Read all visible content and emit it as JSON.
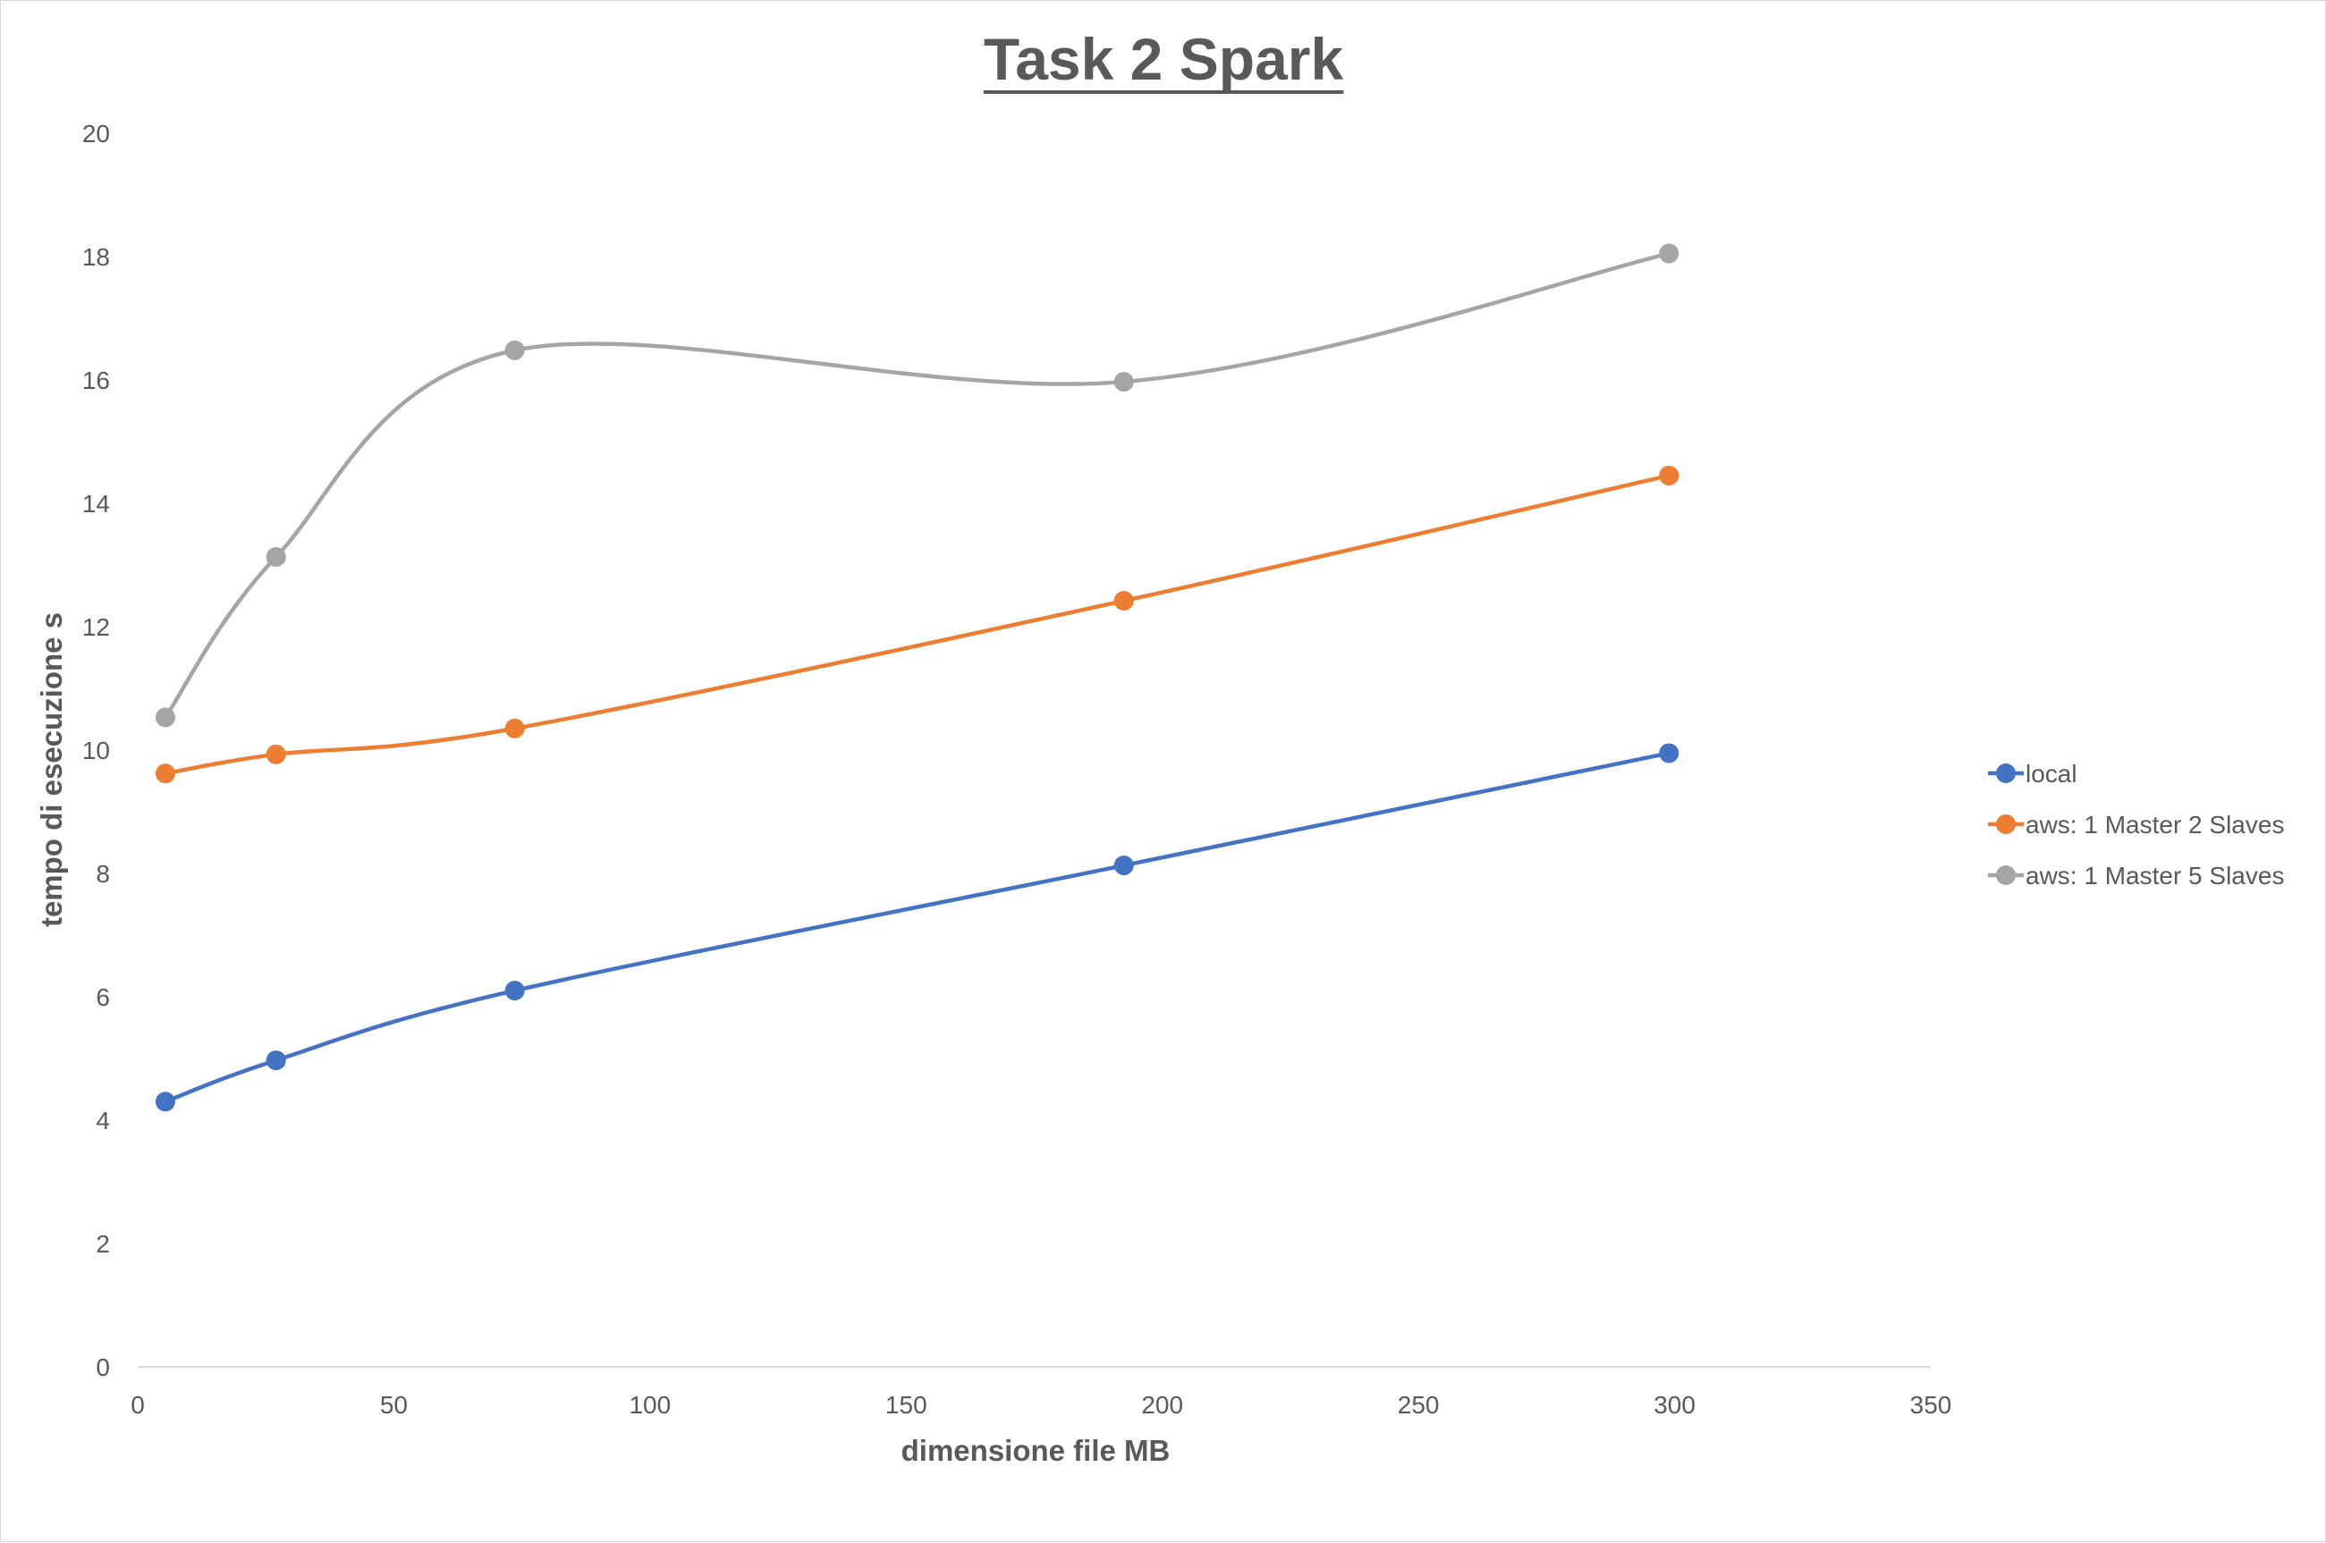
{
  "chart_data": {
    "type": "scatter",
    "title": "Task 2 Spark",
    "xlabel": "dimensione file MB",
    "ylabel": "tempo di esecuzione s",
    "xlim": [
      0,
      350
    ],
    "ylim": [
      0,
      20
    ],
    "x_ticks": [
      "0",
      "50",
      "100",
      "150",
      "200",
      "250",
      "300",
      "350"
    ],
    "y_ticks": [
      "0",
      "2",
      "4",
      "6",
      "8",
      "10",
      "12",
      "14",
      "16",
      "18",
      "20"
    ],
    "grid": false,
    "smooth_lines": true,
    "legend_position": "right",
    "series": [
      {
        "name": "local",
        "color": "#4472C4",
        "points": [
          [
            5.4,
            4.3
          ],
          [
            27,
            4.97
          ],
          [
            73.6,
            6.1
          ],
          [
            192.5,
            8.13
          ],
          [
            298.9,
            9.95
          ]
        ]
      },
      {
        "name": "aws: 1 Master 2 Slaves",
        "color": "#ED7D31",
        "points": [
          [
            5.4,
            9.62
          ],
          [
            27,
            9.93
          ],
          [
            73.6,
            10.35
          ],
          [
            192.5,
            12.42
          ],
          [
            298.9,
            14.45
          ]
        ]
      },
      {
        "name": "aws: 1 Master 5 Slaves",
        "color": "#A5A5A5",
        "points": [
          [
            5.4,
            10.53
          ],
          [
            27,
            13.13
          ],
          [
            73.6,
            16.48
          ],
          [
            192.5,
            15.97
          ],
          [
            298.9,
            18.05
          ]
        ]
      }
    ]
  }
}
